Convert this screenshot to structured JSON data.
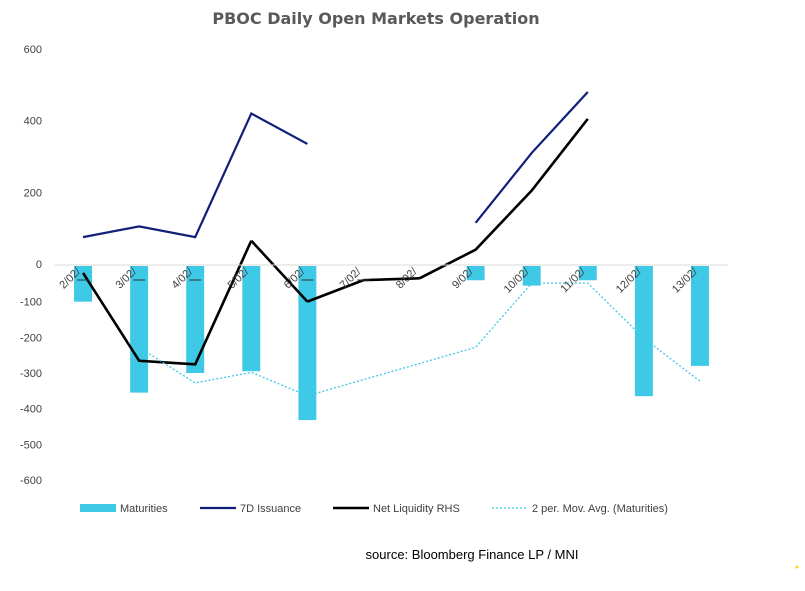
{
  "chart_data": {
    "type": "bar",
    "title": "PBOC Daily Open Markets Operation",
    "categories": [
      "2/02/",
      "3/02/",
      "4/02/",
      "5/02/",
      "6/02/",
      "7/02/",
      "8/02/",
      "9/02/",
      "10/02/",
      "11/02/",
      "12/02/",
      "13/02/"
    ],
    "left_axis": {
      "ticks": [
        600,
        400,
        200,
        0
      ],
      "ylim": [
        -30,
        600
      ]
    },
    "right_axis": {
      "ticks": [
        -100,
        -200,
        -300,
        -400,
        -500,
        -600
      ],
      "ylim": [
        -600,
        30
      ]
    },
    "series": [
      {
        "name": "Maturities",
        "type": "bar",
        "axis": "right",
        "color": "#3ec9e6",
        "values": [
          -100,
          -355,
          -300,
          -295,
          -432,
          null,
          null,
          -40,
          -55,
          -40,
          -365,
          -280
        ]
      },
      {
        "name": "7D Issuance",
        "type": "line",
        "axis": "left",
        "color": "#0f1f7a",
        "values": [
          75,
          105,
          75,
          420,
          335,
          null,
          null,
          115,
          310,
          480,
          null,
          null
        ]
      },
      {
        "name": "Net Liquidity RHS",
        "type": "line",
        "axis": "left",
        "color": "#000000",
        "values": [
          -25,
          -270,
          -280,
          65,
          -105,
          -45,
          -40,
          40,
          205,
          405,
          null,
          null
        ],
        "segments": [
          [
            0,
            3
          ],
          [
            3,
            4
          ],
          [
            4,
            5
          ],
          [
            5,
            6
          ],
          [
            6,
            9
          ]
        ]
      },
      {
        "name": "2 per. Mov. Avg. (Maturities)",
        "type": "line",
        "axis": "right",
        "style": "dotted",
        "color": "#3ec9e6",
        "values": [
          null,
          -228,
          -328,
          -298,
          -364,
          null,
          null,
          -228,
          -48,
          -48,
          -203,
          -323
        ]
      }
    ],
    "legend": "bottom",
    "grid": false
  },
  "source": "source:  Bloomberg Finance LP / MNI"
}
